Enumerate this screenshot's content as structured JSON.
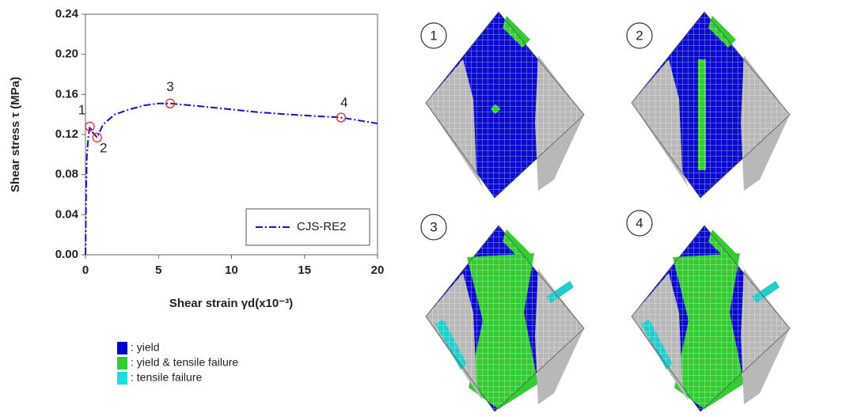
{
  "chart_data": {
    "type": "line",
    "x_label": "Shear strain γd(x10⁻³)",
    "y_label": "Shear stress  τ (MPa)",
    "x": [
      0,
      0.05,
      0.1,
      0.2,
      0.3,
      0.5,
      0.8,
      1.2,
      2,
      3,
      4,
      5,
      5.8,
      8,
      10,
      12,
      15,
      17.5,
      20
    ],
    "series": [
      {
        "name": "CJS-RE2",
        "color": "#1010e0",
        "values": [
          0,
          0.07,
          0.1,
          0.118,
          0.128,
          0.122,
          0.117,
          0.13,
          0.14,
          0.145,
          0.149,
          0.151,
          0.151,
          0.148,
          0.145,
          0.142,
          0.139,
          0.137,
          0.131
        ]
      }
    ],
    "xlim": [
      0,
      20
    ],
    "ylim": [
      0,
      0.24
    ],
    "xticks": [
      0,
      5,
      10,
      15,
      20
    ],
    "yticks": [
      {
        "value": 0,
        "label": "0.00"
      },
      {
        "value": 0.04,
        "label": "0.04"
      },
      {
        "value": 0.08,
        "label": "0.08"
      },
      {
        "value": 0.12,
        "label": "0.12"
      },
      {
        "value": 0.16,
        "label": "0.16"
      },
      {
        "value": 0.2,
        "label": "0.20"
      },
      {
        "value": 0.24,
        "label": "0.24"
      }
    ],
    "markers": {
      "x": [
        0.3,
        0.8,
        5.8,
        17.5
      ],
      "y": [
        0.128,
        0.117,
        0.151,
        0.137
      ],
      "labels": [
        "1",
        "2",
        "3",
        "4"
      ],
      "color": "#ee2222"
    },
    "legend": "lower right",
    "grid": false
  },
  "color_legend": [
    {
      "label": ": yield",
      "color": "#0000cc"
    },
    {
      "label": ": yield & tensile failure",
      "color": "#33cc33"
    },
    {
      "label": ": tensile failure",
      "color": "#22dddd"
    }
  ],
  "panels": [
    "1",
    "2",
    "3",
    "4"
  ]
}
